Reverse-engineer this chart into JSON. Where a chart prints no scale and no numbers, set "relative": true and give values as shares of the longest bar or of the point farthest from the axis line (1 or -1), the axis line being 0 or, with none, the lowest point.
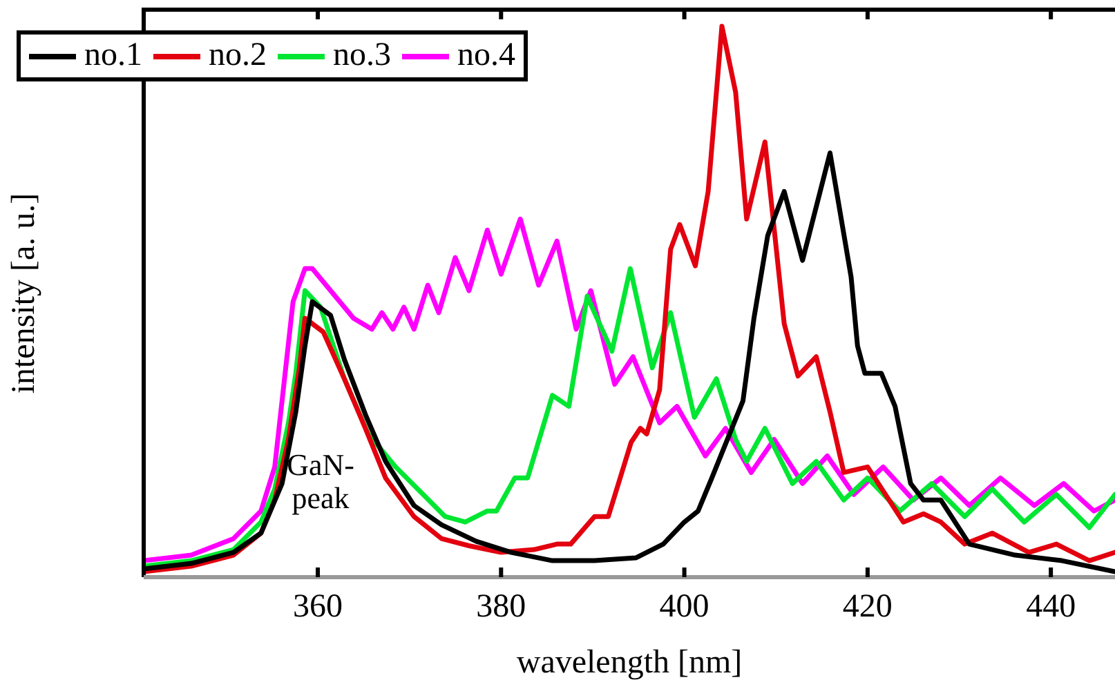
{
  "chart_data": {
    "type": "line",
    "relative": true,
    "xlabel": "wavelength [nm]",
    "ylabel": "intensity [a. u.]",
    "xlim": [
      341,
      447
    ],
    "xticks": [
      360,
      380,
      400,
      420,
      440
    ],
    "legend": "top left",
    "grid": false,
    "marker": "none",
    "line_style": "solid",
    "annotations": [
      "GaN-\npeak"
    ],
    "series": [
      {
        "name": "no.1",
        "color": "#000000",
        "x": [
          341,
          346.2,
          350.8,
          353.8,
          356.1,
          357.6,
          358.6,
          359.4,
          361.4,
          362.9,
          365.2,
          367.4,
          370.5,
          373.5,
          377.3,
          381.1,
          385.6,
          390.2,
          394.7,
          397.7,
          400.0,
          401.5,
          403.0,
          406.4,
          407.6,
          409.1,
          410.9,
          412.9,
          415.9,
          418.2,
          418.9,
          419.7,
          421.5,
          423.0,
          424.7,
          426.1,
          428.0,
          431.1,
          436.1,
          441.2,
          447
        ],
        "values": [
          0.015,
          0.025,
          0.045,
          0.08,
          0.17,
          0.3,
          0.42,
          0.5,
          0.475,
          0.395,
          0.295,
          0.21,
          0.13,
          0.095,
          0.065,
          0.045,
          0.03,
          0.03,
          0.035,
          0.06,
          0.1,
          0.12,
          0.18,
          0.32,
          0.47,
          0.62,
          0.7,
          0.575,
          0.77,
          0.545,
          0.42,
          0.37,
          0.37,
          0.31,
          0.17,
          0.14,
          0.14,
          0.06,
          0.04,
          0.03,
          0.01
        ]
      },
      {
        "name": "no.2",
        "color": "#e3000f",
        "x": [
          341,
          346.2,
          350.8,
          353.8,
          355.3,
          356.8,
          358.0,
          358.6,
          360.6,
          362.9,
          365.2,
          367.4,
          370.5,
          373.5,
          376.5,
          380.0,
          383.6,
          386.1,
          387.6,
          390.2,
          391.7,
          394.2,
          395.2,
          395.9,
          397.3,
          398.5,
          399.5,
          401.2,
          402.6,
          404.1,
          405.6,
          406.8,
          408.8,
          410.9,
          412.4,
          414.4,
          415.9,
          417.4,
          420.0,
          423.9,
          426.1,
          428.0,
          430.6,
          433.6,
          437.6,
          440.6,
          444.2,
          447
        ],
        "values": [
          0.01,
          0.02,
          0.04,
          0.08,
          0.14,
          0.25,
          0.38,
          0.47,
          0.445,
          0.36,
          0.27,
          0.18,
          0.11,
          0.07,
          0.057,
          0.045,
          0.05,
          0.06,
          0.06,
          0.11,
          0.11,
          0.245,
          0.27,
          0.26,
          0.34,
          0.595,
          0.64,
          0.565,
          0.7,
          1.0,
          0.88,
          0.65,
          0.79,
          0.46,
          0.365,
          0.4,
          0.3,
          0.19,
          0.2,
          0.1,
          0.115,
          0.1,
          0.06,
          0.08,
          0.045,
          0.06,
          0.03,
          0.045
        ]
      },
      {
        "name": "no.3",
        "color": "#00e632",
        "x": [
          341,
          346.2,
          350.8,
          353.8,
          355.3,
          356.8,
          357.6,
          358.6,
          360.3,
          362.9,
          365.5,
          368.5,
          371.5,
          373.9,
          376.1,
          378.5,
          379.5,
          381.5,
          382.9,
          385.6,
          387.4,
          389.4,
          390.2,
          392.1,
          394.1,
          396.5,
          398.5,
          401.1,
          403.5,
          405.6,
          406.8,
          408.8,
          411.8,
          414.4,
          417.4,
          420.0,
          423.5,
          427.0,
          430.6,
          433.6,
          437.1,
          440.6,
          444.2,
          447
        ],
        "values": [
          0.02,
          0.03,
          0.05,
          0.1,
          0.16,
          0.28,
          0.37,
          0.52,
          0.49,
          0.36,
          0.26,
          0.2,
          0.15,
          0.11,
          0.1,
          0.12,
          0.12,
          0.18,
          0.18,
          0.33,
          0.31,
          0.51,
          0.48,
          0.41,
          0.56,
          0.38,
          0.48,
          0.29,
          0.36,
          0.25,
          0.21,
          0.27,
          0.17,
          0.21,
          0.14,
          0.18,
          0.12,
          0.17,
          0.11,
          0.16,
          0.1,
          0.15,
          0.09,
          0.15
        ]
      },
      {
        "name": "no.4",
        "color": "#ff00ff",
        "x": [
          341,
          346.2,
          350.8,
          353.8,
          355.3,
          357.3,
          358.6,
          359.4,
          360.9,
          362.4,
          363.9,
          365.9,
          367.0,
          368.2,
          369.4,
          370.5,
          372.0,
          373.2,
          375.0,
          376.5,
          378.5,
          380.0,
          382.1,
          384.1,
          386.1,
          388.2,
          389.8,
          392.4,
          394.4,
          397.3,
          399.2,
          402.3,
          404.5,
          407.3,
          409.8,
          412.9,
          415.6,
          418.5,
          421.7,
          425.0,
          428.0,
          431.1,
          434.5,
          438.2,
          441.4,
          444.7,
          447
        ],
        "values": [
          0.03,
          0.04,
          0.07,
          0.12,
          0.2,
          0.5,
          0.56,
          0.56,
          0.53,
          0.5,
          0.47,
          0.45,
          0.48,
          0.45,
          0.49,
          0.45,
          0.53,
          0.48,
          0.58,
          0.52,
          0.63,
          0.55,
          0.65,
          0.53,
          0.61,
          0.45,
          0.52,
          0.35,
          0.4,
          0.28,
          0.31,
          0.22,
          0.27,
          0.19,
          0.25,
          0.17,
          0.22,
          0.15,
          0.2,
          0.14,
          0.18,
          0.13,
          0.18,
          0.13,
          0.17,
          0.12,
          0.14
        ]
      }
    ]
  }
}
